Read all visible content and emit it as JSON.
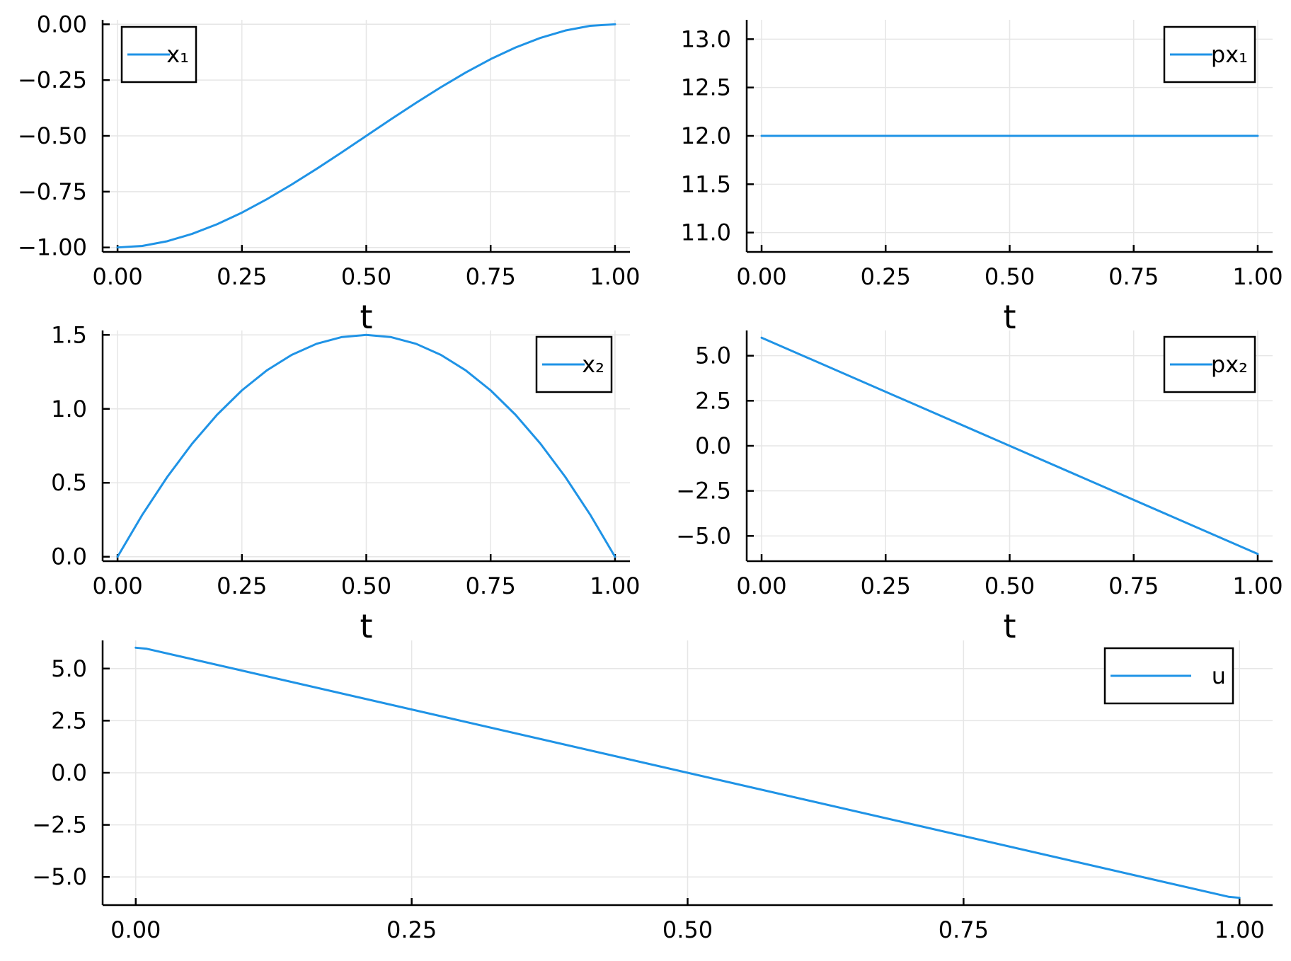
{
  "chart_data": [
    {
      "type": "line",
      "x": [
        0,
        0.05,
        0.1,
        0.15,
        0.2,
        0.25,
        0.3,
        0.35,
        0.4,
        0.45,
        0.5,
        0.55,
        0.6,
        0.65,
        0.7,
        0.75,
        0.8,
        0.85,
        0.9,
        0.95,
        1.0
      ],
      "series": [
        {
          "name": "x₁",
          "values": [
            -1.0,
            -0.993,
            -0.972,
            -0.939,
            -0.896,
            -0.844,
            -0.784,
            -0.718,
            -0.648,
            -0.575,
            -0.5,
            -0.425,
            -0.352,
            -0.282,
            -0.216,
            -0.156,
            -0.104,
            -0.061,
            -0.028,
            -0.007,
            0.0
          ]
        }
      ],
      "xlabel": "t",
      "ylabel": "",
      "xlim": [
        -0.03,
        1.03
      ],
      "ylim": [
        -1.02,
        0.02
      ],
      "xticks": [
        "0.00",
        "0.25",
        "0.50",
        "0.75",
        "1.00"
      ],
      "yticks": [
        "0.00",
        "−0.25",
        "−0.50",
        "−0.75",
        "−1.00"
      ],
      "grid": true,
      "legend": "top-left",
      "color": "#1f93e6"
    },
    {
      "type": "line",
      "x": [
        0,
        1.0
      ],
      "series": [
        {
          "name": "px₁",
          "values": [
            12.0,
            12.0
          ]
        }
      ],
      "xlabel": "t",
      "ylabel": "",
      "xlim": [
        -0.03,
        1.03
      ],
      "ylim": [
        10.8,
        13.2
      ],
      "xticks": [
        "0.00",
        "0.25",
        "0.50",
        "0.75",
        "1.00"
      ],
      "yticks": [
        "13.0",
        "12.5",
        "12.0",
        "11.5",
        "11.0"
      ],
      "grid": true,
      "legend": "top-right",
      "color": "#1f93e6"
    },
    {
      "type": "line",
      "x": [
        0,
        0.05,
        0.1,
        0.15,
        0.2,
        0.25,
        0.3,
        0.35,
        0.4,
        0.45,
        0.5,
        0.55,
        0.6,
        0.65,
        0.7,
        0.75,
        0.8,
        0.85,
        0.9,
        0.95,
        1.0
      ],
      "series": [
        {
          "name": "x₂",
          "values": [
            0.0,
            0.285,
            0.54,
            0.765,
            0.96,
            1.125,
            1.26,
            1.365,
            1.44,
            1.485,
            1.5,
            1.485,
            1.44,
            1.365,
            1.26,
            1.125,
            0.96,
            0.765,
            0.54,
            0.285,
            0.0
          ]
        }
      ],
      "xlabel": "t",
      "ylabel": "",
      "xlim": [
        -0.03,
        1.03
      ],
      "ylim": [
        -0.03,
        1.53
      ],
      "xticks": [
        "0.00",
        "0.25",
        "0.50",
        "0.75",
        "1.00"
      ],
      "yticks": [
        "1.5",
        "1.0",
        "0.5",
        "0.0"
      ],
      "grid": true,
      "legend": "top-right",
      "color": "#1f93e6"
    },
    {
      "type": "line",
      "x": [
        0,
        1.0
      ],
      "series": [
        {
          "name": "px₂",
          "values": [
            6.0,
            -6.0
          ]
        }
      ],
      "xlabel": "t",
      "ylabel": "",
      "xlim": [
        -0.03,
        1.03
      ],
      "ylim": [
        -6.4,
        6.4
      ],
      "xticks": [
        "0.00",
        "0.25",
        "0.50",
        "0.75",
        "1.00"
      ],
      "yticks": [
        "5.0",
        "2.5",
        "0.0",
        "−2.5",
        "−5.0"
      ],
      "grid": true,
      "legend": "top-right",
      "color": "#1f93e6"
    },
    {
      "type": "line",
      "x": [
        0,
        0.01,
        0.99,
        1.0
      ],
      "series": [
        {
          "name": "u",
          "values": [
            6.0,
            5.95,
            -5.95,
            -6.0
          ]
        }
      ],
      "xlabel": "",
      "ylabel": "",
      "xlim": [
        -0.03,
        1.03
      ],
      "ylim": [
        -6.35,
        6.35
      ],
      "xticks": [
        "0.00",
        "0.25",
        "0.50",
        "0.75",
        "1.00"
      ],
      "yticks": [
        "5.0",
        "2.5",
        "0.0",
        "−2.5",
        "−5.0"
      ],
      "grid": true,
      "legend": "top-right",
      "color": "#1f93e6"
    }
  ]
}
